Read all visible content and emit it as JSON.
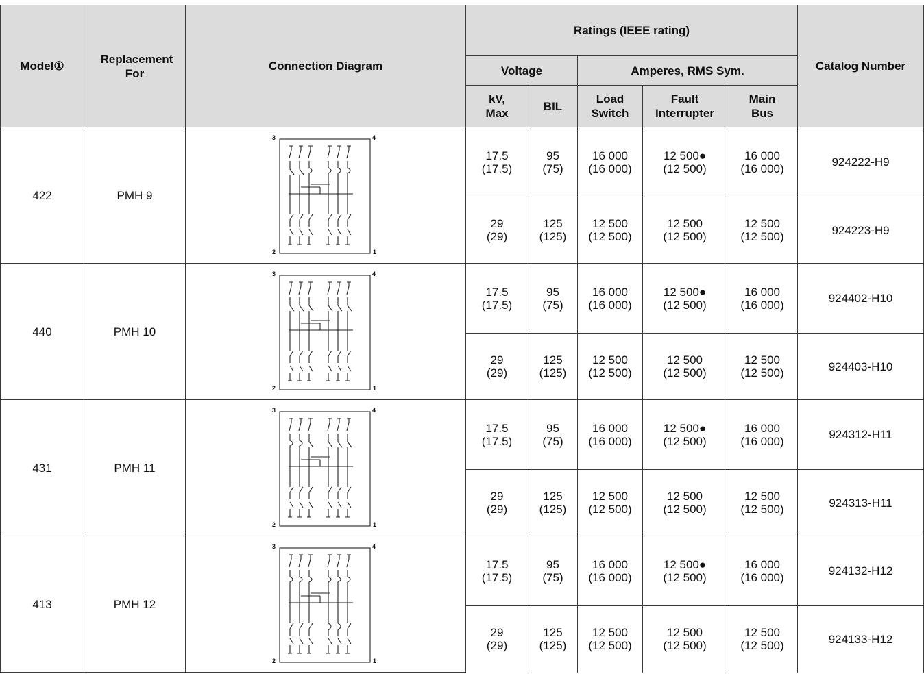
{
  "header": {
    "model": "Model①",
    "replacement": "Replacement For",
    "diagram": "Connection Diagram",
    "ratings": "Ratings (IEEE rating)",
    "voltage": "Voltage",
    "amperes": "Amperes, RMS Sym.",
    "kv": "kV, Max",
    "bil": "BIL",
    "load_switch": "Load Switch",
    "fault_interrupter": "Fault Interrupter",
    "main_bus": "Main Bus",
    "catalog": "Catalog Number"
  },
  "diagram_terminals": [
    "3",
    "4",
    "2",
    "1"
  ],
  "groups": [
    {
      "model": "422",
      "replacement": "PMH 9",
      "rows": [
        {
          "kv": "17.5",
          "kv_ieee": "(17.5)",
          "bil": "95",
          "bil_ieee": "(75)",
          "load": "16 000",
          "load_ieee": "(16 000)",
          "fault": "12 500●",
          "fault_ieee": "(12 500)",
          "bus": "16 000",
          "bus_ieee": "(16 000)",
          "catalog": "924222-H9"
        },
        {
          "kv": "29",
          "kv_ieee": "(29)",
          "bil": "125",
          "bil_ieee": "(125)",
          "load": "12 500",
          "load_ieee": "(12 500)",
          "fault": "12 500",
          "fault_ieee": "(12 500)",
          "bus": "12 500",
          "bus_ieee": "(12 500)",
          "catalog": "924223-H9"
        }
      ]
    },
    {
      "model": "440",
      "replacement": "PMH 10",
      "rows": [
        {
          "kv": "17.5",
          "kv_ieee": "(17.5)",
          "bil": "95",
          "bil_ieee": "(75)",
          "load": "16 000",
          "load_ieee": "(16 000)",
          "fault": "12 500●",
          "fault_ieee": "(12 500)",
          "bus": "16 000",
          "bus_ieee": "(16 000)",
          "catalog": "924402-H10"
        },
        {
          "kv": "29",
          "kv_ieee": "(29)",
          "bil": "125",
          "bil_ieee": "(125)",
          "load": "12 500",
          "load_ieee": "(12 500)",
          "fault": "12 500",
          "fault_ieee": "(12 500)",
          "bus": "12 500",
          "bus_ieee": "(12 500)",
          "catalog": "924403-H10"
        }
      ]
    },
    {
      "model": "431",
      "replacement": "PMH 11",
      "rows": [
        {
          "kv": "17.5",
          "kv_ieee": "(17.5)",
          "bil": "95",
          "bil_ieee": "(75)",
          "load": "16 000",
          "load_ieee": "(16 000)",
          "fault": "12 500●",
          "fault_ieee": "(12 500)",
          "bus": "16 000",
          "bus_ieee": "(16 000)",
          "catalog": "924312-H11"
        },
        {
          "kv": "29",
          "kv_ieee": "(29)",
          "bil": "125",
          "bil_ieee": "(125)",
          "load": "12 500",
          "load_ieee": "(12 500)",
          "fault": "12 500",
          "fault_ieee": "(12 500)",
          "bus": "12 500",
          "bus_ieee": "(12 500)",
          "catalog": "924313-H11"
        }
      ]
    },
    {
      "model": "413",
      "replacement": "PMH 12",
      "rows": [
        {
          "kv": "17.5",
          "kv_ieee": "(17.5)",
          "bil": "95",
          "bil_ieee": "(75)",
          "load": "16 000",
          "load_ieee": "(16 000)",
          "fault": "12 500●",
          "fault_ieee": "(12 500)",
          "bus": "16 000",
          "bus_ieee": "(16 000)",
          "catalog": "924132-H12"
        },
        {
          "kv": "29",
          "kv_ieee": "(29)",
          "bil": "125",
          "bil_ieee": "(125)",
          "load": "12 500",
          "load_ieee": "(12 500)",
          "fault": "12 500",
          "fault_ieee": "(12 500)",
          "bus": "12 500",
          "bus_ieee": "(12 500)",
          "catalog": "924133-H12"
        }
      ]
    }
  ]
}
